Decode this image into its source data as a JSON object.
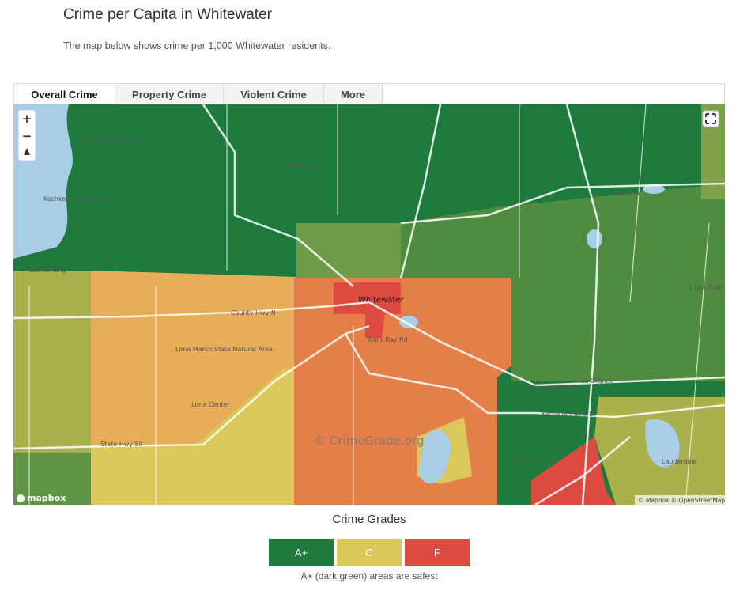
{
  "header": {
    "title": "Crime per Capita in Whitewater",
    "description": "The map below shows crime per 1,000 Whitewater residents."
  },
  "tabs": [
    "Overall Crime",
    "Property Crime",
    "Violent Crime",
    "More"
  ],
  "map": {
    "zoom_in": "+",
    "zoom_out": "−",
    "labels": [
      "Blackhawk Island",
      "Koshkonong Mounds",
      "Koshkonong",
      "Cold Spring",
      "Palmyra",
      "Whitewater",
      "County Hwy N",
      "Willis Ray Rd",
      "Lima Center",
      "State Hwy 59",
      "E Milwaukee St",
      "La Grange",
      "Kettle Moraine Dr",
      "Heart Prairie",
      "Lauderdale",
      "Little Prairie",
      "Lima Marsh State Natural Area"
    ],
    "watermark": "© CrimeGrade.org",
    "logo": "mapbox",
    "attribution": "© Mapbox © OpenStreetMap"
  },
  "legend": {
    "title": "Crime Grades",
    "items": [
      {
        "label": "A+",
        "color": "#1f7a3e"
      },
      {
        "label": "C",
        "color": "#dcc85a"
      },
      {
        "label": "F",
        "color": "#dc4a40"
      }
    ],
    "note": "A+ (dark green) areas are safest"
  }
}
